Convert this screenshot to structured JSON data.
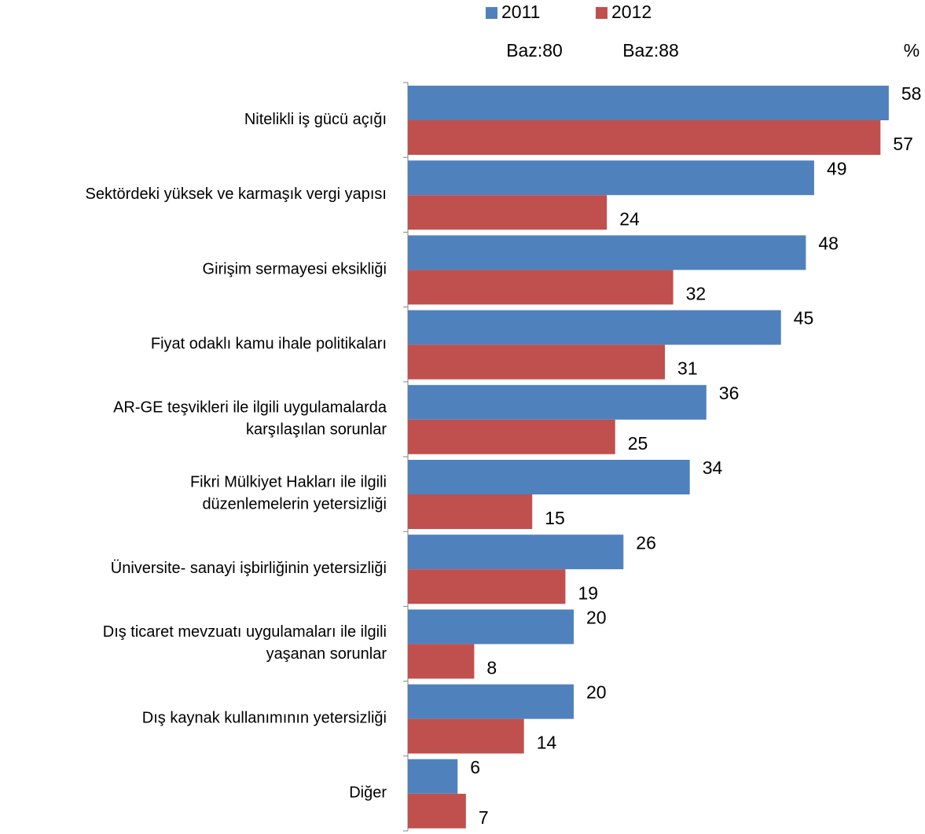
{
  "chart_data": {
    "type": "bar",
    "orientation": "horizontal",
    "unit_label": "%",
    "categories": [
      "Nitelikli iş gücü açığı",
      "Sektördeki yüksek ve karmaşık vergi yapısı",
      "Girişim sermayesi eksikliği",
      "Fiyat odaklı kamu ihale politikaları",
      "AR-GE teşvikleri ile ilgili uygulamalarda\nkarşılaşılan sorunlar",
      "Fikri Mülkiyet Hakları ile ilgili\ndüzenlemelerin yetersizliği",
      "Üniversite- sanayi işbirliğinin yetersizliği",
      "Dış ticaret mevzuatı uygulamaları ile ilgili\nyaşanan sorunlar",
      "Dış kaynak kullanımının yetersizliği",
      "Diğer"
    ],
    "series": [
      {
        "name": "2011",
        "base": "Baz:80",
        "color": "#4f81bd",
        "values": [
          58,
          49,
          48,
          45,
          36,
          34,
          26,
          20,
          20,
          6
        ]
      },
      {
        "name": "2012",
        "base": "Baz:88",
        "color": "#c0504d",
        "values": [
          57,
          24,
          32,
          31,
          25,
          15,
          19,
          8,
          14,
          7
        ]
      }
    ],
    "xlim": [
      0,
      60
    ],
    "legend": "top"
  }
}
